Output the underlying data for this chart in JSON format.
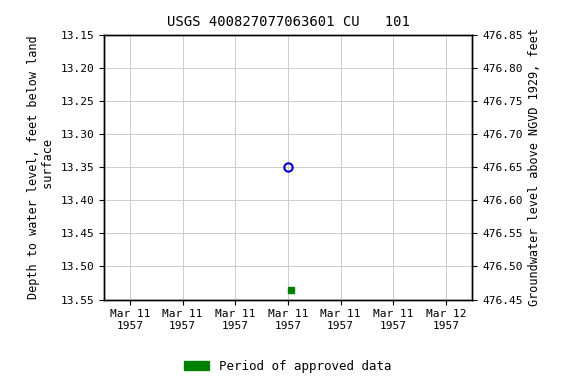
{
  "title": "USGS 400827077063601 CU   101",
  "ylabel_left": "Depth to water level, feet below land\n surface",
  "ylabel_right": "Groundwater level above NGVD 1929, feet",
  "ylim_left_top": 13.15,
  "ylim_left_bottom": 13.55,
  "ylim_right_top": 476.85,
  "ylim_right_bottom": 476.45,
  "yticks_left": [
    13.15,
    13.2,
    13.25,
    13.3,
    13.35,
    13.4,
    13.45,
    13.5,
    13.55
  ],
  "yticks_right": [
    476.85,
    476.8,
    476.75,
    476.7,
    476.65,
    476.6,
    476.55,
    476.5,
    476.45
  ],
  "ytick_labels_left": [
    "13.15",
    "13.20",
    "13.25",
    "13.30",
    "13.35",
    "13.40",
    "13.45",
    "13.50",
    "13.55"
  ],
  "ytick_labels_right": [
    "476.85",
    "476.80",
    "476.75",
    "476.70",
    "476.65",
    "476.60",
    "476.55",
    "476.50",
    "476.45"
  ],
  "xtick_labels": [
    "Mar 11\n1957",
    "Mar 11\n1957",
    "Mar 11\n1957",
    "Mar 11\n1957",
    "Mar 11\n1957",
    "Mar 11\n1957",
    "Mar 12\n1957"
  ],
  "xtick_positions": [
    0,
    1,
    2,
    3,
    4,
    5,
    6
  ],
  "point_blue_x": 3.0,
  "point_blue_y": 13.35,
  "point_green_x": 3.05,
  "point_green_y": 13.535,
  "blue_color": "#0000cc",
  "green_color": "#008000",
  "background_color": "#ffffff",
  "grid_color": "#cccccc",
  "legend_label": "Period of approved data",
  "title_fontsize": 10,
  "label_fontsize": 8.5,
  "tick_fontsize": 8
}
